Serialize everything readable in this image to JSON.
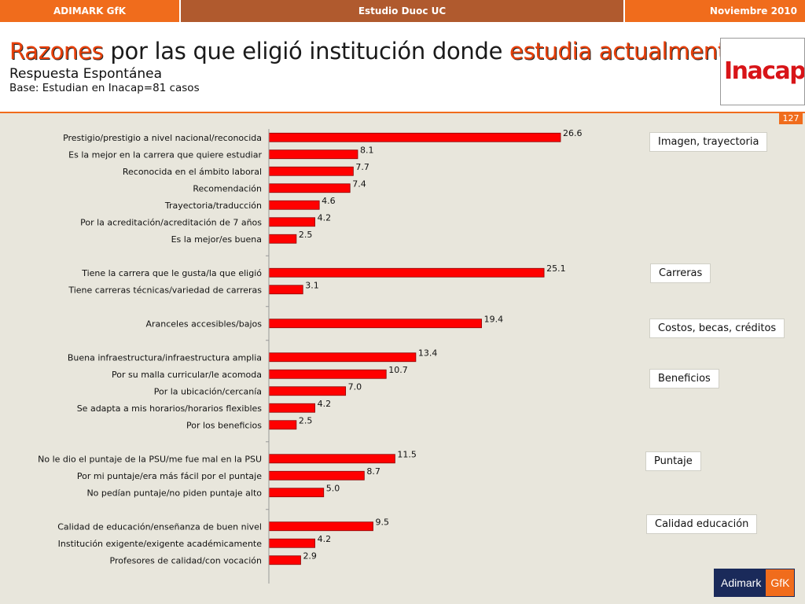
{
  "topbar": {
    "left": "ADIMARK GfK",
    "center": "Estudio Duoc UC",
    "right": "Noviembre 2010"
  },
  "header": {
    "title_hl1": "Razones",
    "title_mid": " por las que eligió institución donde ",
    "title_hl2": "estudia actualmente",
    "subtitle": "Respuesta Espontánea",
    "base": "Base: Estudian en Inacap=81 casos",
    "logo_text": "Inacap"
  },
  "page_number": "127",
  "categories": [
    "Imagen, trayectoria",
    "Carreras",
    "Costos, becas, créditos",
    "Beneficios",
    "Puntaje",
    "Calidad educación"
  ],
  "footer_logo": {
    "left": "Adimark",
    "right": "GfK"
  },
  "colors": {
    "bar": "#ff0000",
    "bar_border": "#8b0000",
    "accent": "#f06c1c"
  },
  "chart_data": {
    "type": "bar",
    "orientation": "horizontal",
    "xlim": [
      0,
      30
    ],
    "groups": [
      {
        "labels": [
          "Prestigio/prestigio a nivel nacional/reconocida",
          "Es la mejor en la carrera que quiere estudiar",
          "Reconocida en el ámbito laboral",
          "Recomendación",
          "Trayectoria/traducción",
          "Por la acreditación/acreditación de 7 años",
          "Es la mejor/es buena"
        ],
        "values": [
          26.6,
          8.1,
          7.7,
          7.4,
          4.6,
          4.2,
          2.5
        ]
      },
      {
        "labels": [
          "Tiene la carrera que le gusta/la que eligió",
          "Tiene carreras técnicas/variedad de carreras"
        ],
        "values": [
          25.1,
          3.1
        ]
      },
      {
        "labels": [
          "Aranceles accesibles/bajos"
        ],
        "values": [
          19.4
        ]
      },
      {
        "labels": [
          "Buena infraestructura/infraestructura amplia",
          "Por su malla curricular/le acomoda ",
          "Por la ubicación/cercanía",
          "Se adapta a mis horarios/horarios flexibles",
          "Por los beneficios"
        ],
        "values": [
          13.4,
          10.7,
          7.0,
          4.2,
          2.5
        ]
      },
      {
        "labels": [
          "No le dio el puntaje de la PSU/me fue mal en la PSU",
          "Por mi puntaje/era más fácil por el puntaje",
          "No pedían puntaje/no piden puntaje alto"
        ],
        "values": [
          11.5,
          8.7,
          5.0
        ]
      },
      {
        "labels": [
          "Calidad de educación/enseñanza de buen nivel",
          "Institución exigente/exigente académicamente",
          "Profesores de calidad/con vocación"
        ],
        "values": [
          9.5,
          4.2,
          2.9
        ]
      }
    ]
  }
}
